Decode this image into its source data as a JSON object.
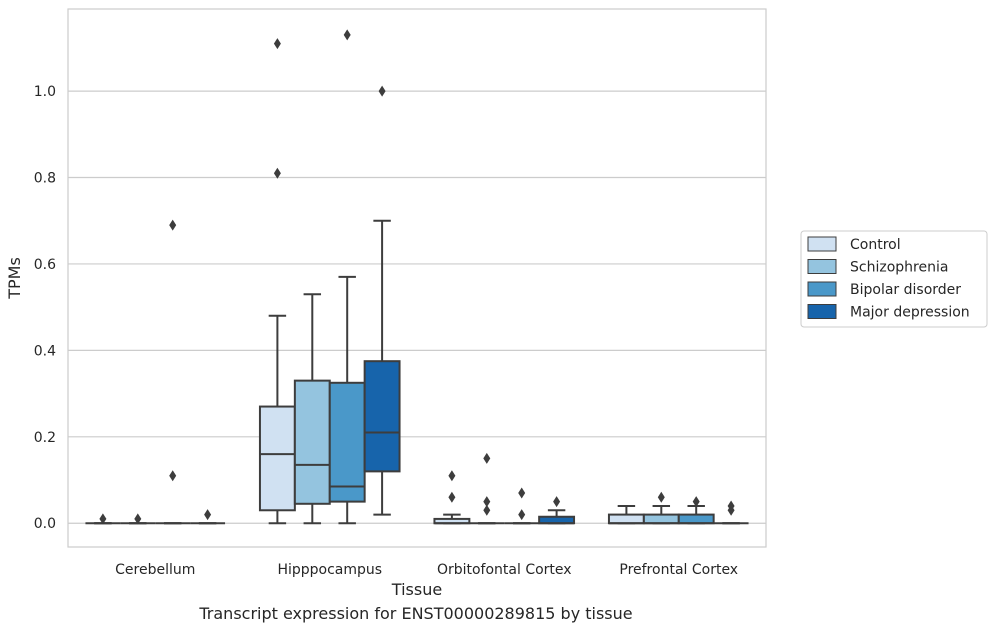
{
  "chart_data": {
    "type": "box",
    "title": "",
    "xlabel": "Tissue",
    "ylabel": "TPMs",
    "ylim": [
      -0.055,
      1.19
    ],
    "yticks": [
      0.0,
      0.2,
      0.4,
      0.6,
      0.8,
      1.0
    ],
    "ytick_labels": [
      "0.0",
      "0.2",
      "0.4",
      "0.6",
      "0.8",
      "1.0"
    ],
    "grid": "horizontal",
    "legend_position": "right",
    "categories": [
      "Cerebellum",
      "Hipppocampus",
      "Orbitofontal Cortex",
      "Prefrontal Cortex"
    ],
    "series": [
      {
        "name": "Control",
        "color": "#d0e1f2",
        "boxes": [
          {
            "q1": 0.0,
            "median": 0.0,
            "q3": 0.0,
            "whisker_low": 0.0,
            "whisker_high": 0.0,
            "outliers": [
              0.01
            ]
          },
          {
            "q1": 0.03,
            "median": 0.16,
            "q3": 0.27,
            "whisker_low": 0.0,
            "whisker_high": 0.48,
            "outliers": [
              0.81,
              1.11
            ]
          },
          {
            "q1": 0.0,
            "median": 0.0,
            "q3": 0.01,
            "whisker_low": 0.0,
            "whisker_high": 0.02,
            "outliers": [
              0.06,
              0.11
            ]
          },
          {
            "q1": 0.0,
            "median": 0.0,
            "q3": 0.02,
            "whisker_low": 0.0,
            "whisker_high": 0.04,
            "outliers": []
          }
        ]
      },
      {
        "name": "Schizophrenia",
        "color": "#94c4df",
        "boxes": [
          {
            "q1": 0.0,
            "median": 0.0,
            "q3": 0.0,
            "whisker_low": 0.0,
            "whisker_high": 0.0,
            "outliers": [
              0.01
            ]
          },
          {
            "q1": 0.045,
            "median": 0.135,
            "q3": 0.33,
            "whisker_low": 0.0,
            "whisker_high": 0.53,
            "outliers": []
          },
          {
            "q1": 0.0,
            "median": 0.0,
            "q3": 0.0,
            "whisker_low": 0.0,
            "whisker_high": 0.0,
            "outliers": [
              0.03,
              0.05,
              0.15
            ]
          },
          {
            "q1": 0.0,
            "median": 0.0,
            "q3": 0.02,
            "whisker_low": 0.0,
            "whisker_high": 0.04,
            "outliers": [
              0.06
            ]
          }
        ]
      },
      {
        "name": "Bipolar disorder",
        "color": "#4a98c9",
        "boxes": [
          {
            "q1": 0.0,
            "median": 0.0,
            "q3": 0.0,
            "whisker_low": 0.0,
            "whisker_high": 0.0,
            "outliers": [
              0.11,
              0.69
            ]
          },
          {
            "q1": 0.05,
            "median": 0.085,
            "q3": 0.325,
            "whisker_low": 0.0,
            "whisker_high": 0.57,
            "outliers": [
              1.13
            ]
          },
          {
            "q1": 0.0,
            "median": 0.0,
            "q3": 0.0,
            "whisker_low": 0.0,
            "whisker_high": 0.0,
            "outliers": [
              0.02,
              0.07
            ]
          },
          {
            "q1": 0.0,
            "median": 0.0,
            "q3": 0.02,
            "whisker_low": 0.0,
            "whisker_high": 0.04,
            "outliers": [
              0.05
            ]
          }
        ]
      },
      {
        "name": "Major depression",
        "color": "#1764ab",
        "boxes": [
          {
            "q1": 0.0,
            "median": 0.0,
            "q3": 0.0,
            "whisker_low": 0.0,
            "whisker_high": 0.0,
            "outliers": [
              0.02
            ]
          },
          {
            "q1": 0.12,
            "median": 0.21,
            "q3": 0.375,
            "whisker_low": 0.02,
            "whisker_high": 0.7,
            "outliers": [
              1.0
            ]
          },
          {
            "q1": 0.0,
            "median": 0.0,
            "q3": 0.015,
            "whisker_low": 0.0,
            "whisker_high": 0.03,
            "outliers": [
              0.05
            ]
          },
          {
            "q1": 0.0,
            "median": 0.0,
            "q3": 0.0,
            "whisker_low": 0.0,
            "whisker_high": 0.0,
            "outliers": [
              0.03,
              0.04
            ]
          }
        ]
      }
    ]
  },
  "caption": "Transcript expression for ENST00000289815 by tissue"
}
